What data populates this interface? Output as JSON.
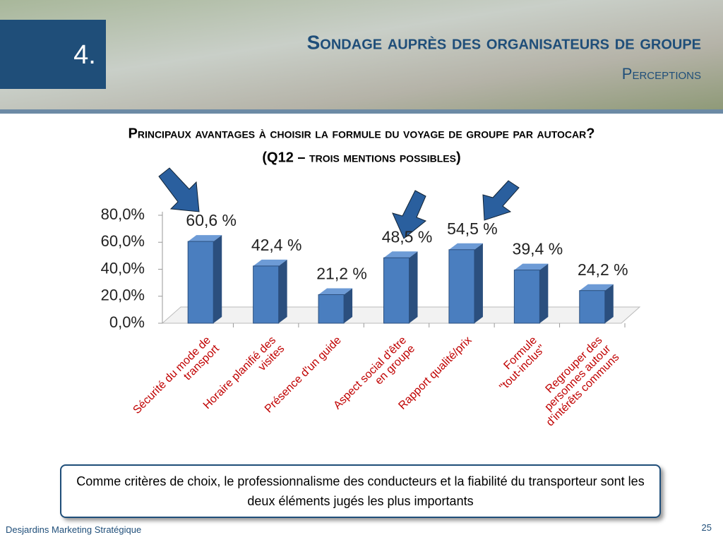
{
  "header": {
    "number": "4.",
    "title": "Sondage auprès des organisateurs de groupe",
    "subtitle": "Perceptions"
  },
  "chart_data": {
    "type": "bar",
    "title": "Principaux avantages à choisir la formule du voyage de groupe par autocar?",
    "subtitle": "(Q12 – trois mentions possibles)",
    "categories": [
      "Sécurité du mode de transport",
      "Horaire planifié des visites",
      "Présence d'un guide",
      "Aspect social d'être en groupe",
      "Rapport qualité/prix",
      "Formule \"tout-inclus\"",
      "Regrouper des personnes autour d'intérêts communs"
    ],
    "values": [
      60.6,
      42.4,
      21.2,
      48.5,
      54.5,
      39.4,
      24.2
    ],
    "value_labels": [
      "60,6 %",
      "42,4 %",
      "21,2 %",
      "48,5 %",
      "54,5 %",
      "39,4 %",
      "24,2 %"
    ],
    "color": "#4a7ebf",
    "ylim": [
      0,
      80
    ],
    "yticks": [
      {
        "value": 0,
        "label": "0,0%"
      },
      {
        "value": 20,
        "label": "20,0%"
      },
      {
        "value": 40,
        "label": "40,0%"
      },
      {
        "value": 60,
        "label": "60,0%"
      },
      {
        "value": 80,
        "label": "80,0%"
      }
    ]
  },
  "callout": "Comme critères de choix, le professionnalisme des conducteurs et la fiabilité du transporteur sont les deux éléments jugés les plus importants",
  "footer": {
    "source": "Desjardins Marketing Stratégique",
    "page": "25"
  }
}
